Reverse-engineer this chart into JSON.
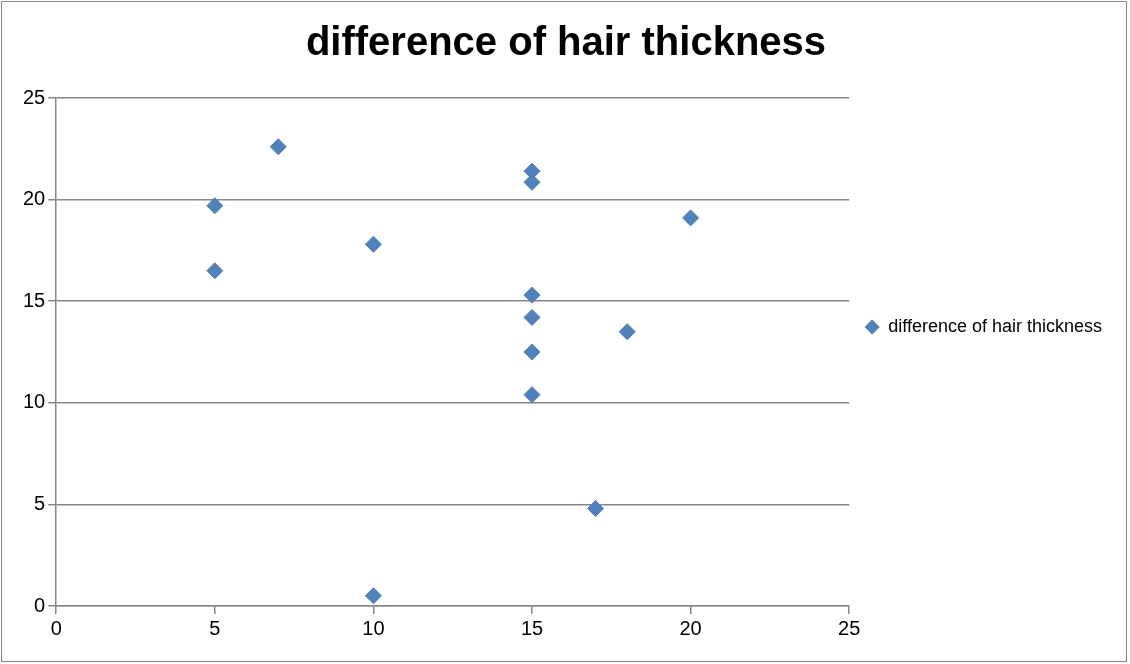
{
  "chart_data": {
    "type": "scatter",
    "title": "difference of hair thickness",
    "series": [
      {
        "name": "difference of hair thickness",
        "color": "#4f81bd",
        "x": [
          5,
          5,
          7,
          10,
          10,
          15,
          15,
          15,
          15,
          15,
          15,
          17,
          18,
          20
        ],
        "values": [
          19.7,
          16.5,
          22.6,
          17.8,
          0.5,
          21.4,
          20.85,
          15.3,
          14.2,
          12.5,
          10.4,
          4.8,
          13.5,
          19.1
        ]
      }
    ],
    "xlim": [
      0,
      25
    ],
    "xticks": [
      0,
      5,
      10,
      15,
      20,
      25
    ],
    "ylim": [
      0,
      25
    ],
    "yticks": [
      0,
      5,
      10,
      15,
      20,
      25
    ],
    "grid": "y",
    "legend": "right",
    "marker": "diamond"
  }
}
